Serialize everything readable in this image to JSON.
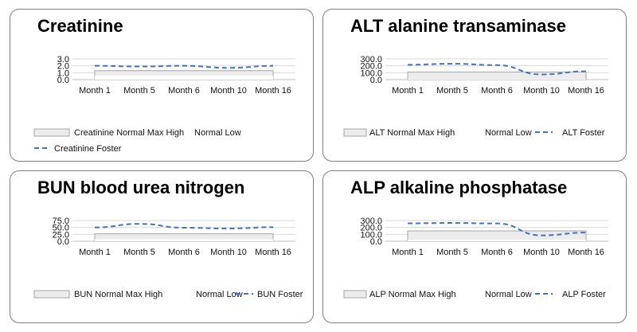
{
  "chart_data": [
    {
      "type": "line",
      "title": "Creatinine",
      "categories": [
        "Month 1",
        "Month 5",
        "Month 6",
        "Month 10",
        "Month 16"
      ],
      "ylim": [
        0,
        3
      ],
      "yticks": [
        "0.0",
        "1.0",
        "2.0",
        "3.0"
      ],
      "tick_values": [
        0,
        1,
        2,
        3
      ],
      "grid": true,
      "series": [
        {
          "name": "Creatinine Normal Max High",
          "kind": "area",
          "values": [
            1.3,
            1.3,
            1.3,
            1.3,
            1.3
          ]
        },
        {
          "name": "Normal Low",
          "kind": "area-white",
          "values": [
            0.6,
            0.6,
            0.6,
            0.6,
            0.6
          ]
        },
        {
          "name": "Creatinine Foster",
          "kind": "dashed-line",
          "values": [
            2.0,
            1.9,
            2.0,
            1.7,
            2.0
          ]
        }
      ],
      "legend": [
        "Creatinine Normal Max High",
        "Normal Low",
        "Creatinine Foster"
      ]
    },
    {
      "type": "line",
      "title": "ALT alanine transaminase",
      "categories": [
        "Month 1",
        "Month 5",
        "Month 6",
        "Month 10",
        "Month 16"
      ],
      "ylim": [
        0,
        300
      ],
      "yticks": [
        "0.0",
        "100.0",
        "200.0",
        "300.0"
      ],
      "tick_values": [
        0,
        100,
        200,
        300
      ],
      "grid": true,
      "series": [
        {
          "name": "ALT Normal Max High",
          "kind": "area",
          "values": [
            110,
            110,
            110,
            110,
            110
          ]
        },
        {
          "name": "Normal Low",
          "kind": "area-white",
          "values": [
            7,
            7,
            7,
            7,
            7
          ]
        },
        {
          "name": "ALT Foster",
          "kind": "dashed-line",
          "values": [
            215,
            230,
            210,
            75,
            120
          ]
        }
      ],
      "legend": [
        "ALT Normal Max High",
        "Normal Low",
        "ALT Foster"
      ]
    },
    {
      "type": "line",
      "title": "BUN blood urea nitrogen",
      "categories": [
        "Month 1",
        "Month 5",
        "Month 6",
        "Month 10",
        "Month 16"
      ],
      "ylim": [
        0,
        75
      ],
      "yticks": [
        "0.0",
        "25.0",
        "50.0",
        "75.0"
      ],
      "tick_values": [
        0,
        25,
        50,
        75
      ],
      "grid": true,
      "series": [
        {
          "name": "BUN Normal Max High",
          "kind": "area",
          "values": [
            27,
            27,
            27,
            27,
            27
          ]
        },
        {
          "name": "Normal Low",
          "kind": "area-white",
          "values": [
            7,
            7,
            7,
            7,
            7
          ]
        },
        {
          "name": "BUN Foster",
          "kind": "dashed-line",
          "values": [
            50,
            63,
            49,
            46,
            51
          ]
        }
      ],
      "legend": [
        "BUN Normal Max High",
        "Normal Low",
        "BUN Foster"
      ]
    },
    {
      "type": "line",
      "title": "ALP alkaline phosphatase",
      "categories": [
        "Month 1",
        "Month 5",
        "Month 6",
        "Month 10",
        "Month 16"
      ],
      "ylim": [
        0,
        300
      ],
      "yticks": [
        "0.0",
        "100.0",
        "200.0",
        "300.0"
      ],
      "tick_values": [
        0,
        100,
        200,
        300
      ],
      "grid": true,
      "series": [
        {
          "name": "ALP Normal Max High",
          "kind": "area",
          "values": [
            150,
            150,
            150,
            150,
            150
          ]
        },
        {
          "name": "Normal Low",
          "kind": "area-white",
          "values": [
            20,
            20,
            20,
            20,
            20
          ]
        },
        {
          "name": "ALP Foster",
          "kind": "dashed-line",
          "values": [
            260,
            265,
            258,
            85,
            125
          ]
        }
      ],
      "legend": [
        "ALP Normal Max High",
        "Normal Low",
        "ALP Foster"
      ]
    }
  ],
  "colors": {
    "band_fill": "#ececec",
    "band_stroke": "#a6a6a6",
    "series_line": "#4472c4",
    "grid": "#d9d9d9",
    "axis": "#bfbfbf"
  }
}
